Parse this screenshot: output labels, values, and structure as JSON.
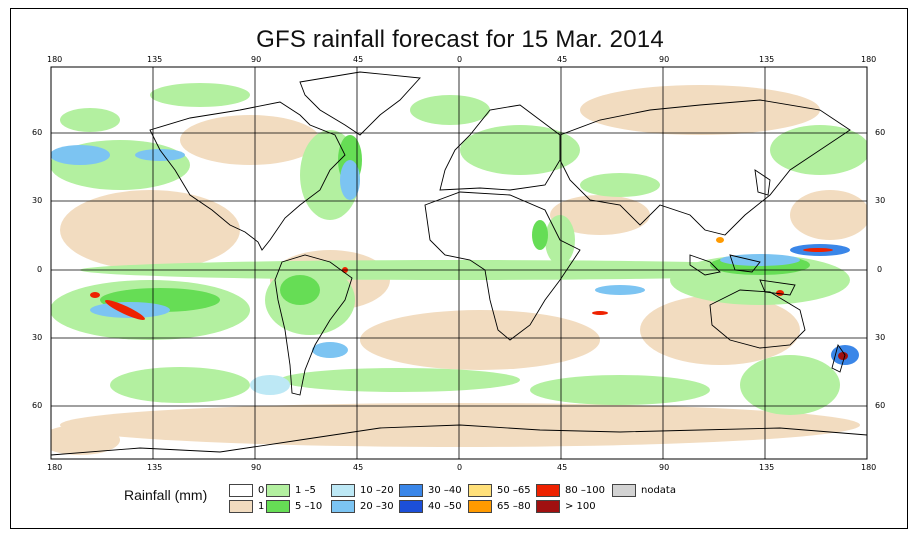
{
  "title": "GFS rainfall forecast for 15 Mar. 2014",
  "axes": {
    "lon_ticks": [
      "180",
      "135",
      "90",
      "45",
      "0",
      "45",
      "90",
      "135",
      "180"
    ],
    "lat_ticks": [
      "60",
      "30",
      "0",
      "30",
      "60"
    ]
  },
  "legend": {
    "title": "Rainfall (mm)",
    "items": [
      {
        "label": "0",
        "color": "#ffffff"
      },
      {
        "label": "1",
        "color": "#f2dcc0"
      },
      {
        "label": "1 –5",
        "color": "#b3f0a0"
      },
      {
        "label": "5 –10",
        "color": "#66dd55"
      },
      {
        "label": "10 –20",
        "color": "#bde8f5"
      },
      {
        "label": "20 –30",
        "color": "#7cc4f2"
      },
      {
        "label": "30 –40",
        "color": "#3a86e8"
      },
      {
        "label": "40 –50",
        "color": "#1c4fd8"
      },
      {
        "label": "50 –65",
        "color": "#ffe07a"
      },
      {
        "label": "65 –80",
        "color": "#ff9a00"
      },
      {
        "label": "80 –100",
        "color": "#ee2200"
      },
      {
        "label": "> 100",
        "color": "#a01010"
      },
      {
        "label": "nodata",
        "color": "#d3d3d3"
      }
    ]
  }
}
